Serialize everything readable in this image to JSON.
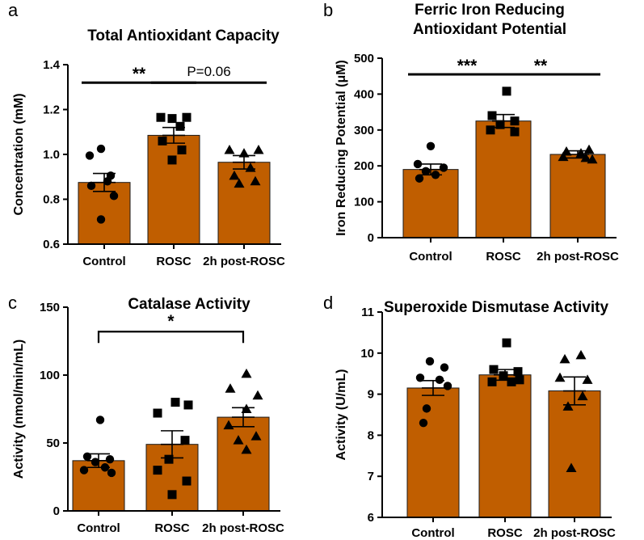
{
  "style": {
    "bar_color": "#c05e00",
    "bar_edge": "#1a1a1a",
    "point_color": "#000000"
  },
  "chart_data": [
    {
      "panel": "a",
      "type": "bar",
      "title": [
        "Total Antioxidant Capacity"
      ],
      "ylabel": "Concentration (mM)",
      "ylim": [
        0.6,
        1.4
      ],
      "yticks": [
        0.6,
        0.8,
        1.0,
        1.2,
        1.4
      ],
      "ytick_labels": [
        "0.6",
        "0.8",
        "1.0",
        "1.2",
        "1.4"
      ],
      "categories": [
        "Control",
        "ROSC",
        "2h post-ROSC"
      ],
      "values": [
        0.875,
        1.085,
        0.965
      ],
      "errors": [
        0.04,
        0.035,
        0.03
      ],
      "points": [
        {
          "shape": "circle",
          "values": [
            1.025,
            0.995,
            0.905,
            0.88,
            0.86,
            0.815,
            0.71
          ],
          "offsets": [
            -4,
            -18,
            8,
            4,
            -16,
            12,
            -4
          ]
        },
        {
          "shape": "square",
          "values": [
            1.165,
            1.165,
            1.16,
            1.125,
            1.06,
            1.02,
            0.975
          ],
          "offsets": [
            -16,
            16,
            -2,
            8,
            -14,
            10,
            -2
          ]
        },
        {
          "shape": "triangle",
          "values": [
            1.02,
            1.02,
            1.005,
            0.94,
            0.905,
            0.88,
            0.87
          ],
          "offsets": [
            -18,
            18,
            0,
            8,
            -12,
            14,
            -6
          ]
        }
      ],
      "significance": [
        {
          "from": 0,
          "to": 1,
          "label": "**",
          "y": 1.32
        },
        {
          "from": 1,
          "to": 2,
          "label": "P=0.06",
          "y": 1.32
        }
      ]
    },
    {
      "panel": "b",
      "type": "bar",
      "title": [
        "Ferric Iron Reducing",
        "Antioxidant Potential"
      ],
      "ylabel": "Iron Reducing Potential (μM)",
      "ylim": [
        0,
        500
      ],
      "yticks": [
        0,
        100,
        200,
        300,
        400,
        500
      ],
      "ytick_labels": [
        "0",
        "100",
        "200",
        "300",
        "400",
        "500"
      ],
      "categories": [
        "Control",
        "ROSC",
        "2h post-ROSC"
      ],
      "values": [
        190,
        325,
        232
      ],
      "errors": [
        15,
        18,
        10
      ],
      "points": [
        {
          "shape": "circle",
          "values": [
            255,
            205,
            195,
            185,
            175,
            165
          ],
          "offsets": [
            0,
            -16,
            16,
            -6,
            6,
            -14
          ]
        },
        {
          "shape": "square",
          "values": [
            408,
            340,
            325,
            315,
            300,
            295
          ],
          "offsets": [
            4,
            -14,
            14,
            -4,
            -16,
            14
          ]
        },
        {
          "shape": "triangle",
          "values": [
            245,
            240,
            235,
            225,
            222,
            218
          ],
          "offsets": [
            14,
            -14,
            4,
            -18,
            10,
            18
          ]
        }
      ],
      "significance": [
        {
          "from": 0,
          "to": 1,
          "label": "***",
          "y": 455
        },
        {
          "from": 1,
          "to": 2,
          "label": "**",
          "y": 455
        }
      ]
    },
    {
      "panel": "c",
      "type": "bar",
      "title": [
        "Catalase Activity"
      ],
      "ylabel": "Activity (nmol/min/mL)",
      "ylim": [
        0,
        150
      ],
      "yticks": [
        0,
        50,
        100,
        150
      ],
      "ytick_labels": [
        "0",
        "50",
        "100",
        "150"
      ],
      "categories": [
        "Control",
        "ROSC",
        "2h post-ROSC"
      ],
      "values": [
        37,
        49,
        69
      ],
      "errors": [
        5,
        10,
        7
      ],
      "points": [
        {
          "shape": "circle",
          "values": [
            67,
            40,
            38,
            36,
            32,
            30,
            28
          ],
          "offsets": [
            2,
            -14,
            14,
            -4,
            8,
            -18,
            16
          ]
        },
        {
          "shape": "square",
          "values": [
            80,
            78,
            72,
            52,
            38,
            30,
            22,
            12
          ],
          "offsets": [
            4,
            20,
            -18,
            16,
            -4,
            -18,
            18,
            0
          ]
        },
        {
          "shape": "triangle",
          "values": [
            101,
            90,
            85,
            75,
            63,
            55,
            52,
            45
          ],
          "offsets": [
            4,
            -16,
            18,
            4,
            -18,
            16,
            -6,
            4
          ]
        }
      ],
      "significance": [
        {
          "from": 0,
          "to": 2,
          "label": "*",
          "y": 132,
          "bracket": true
        }
      ]
    },
    {
      "panel": "d",
      "type": "bar",
      "title": [
        "Superoxide Dismutase Activity"
      ],
      "ylabel": "Activity (U/mL)",
      "ylim": [
        6,
        11
      ],
      "yticks": [
        6,
        7,
        8,
        9,
        10,
        11
      ],
      "ytick_labels": [
        "6",
        "7",
        "8",
        "9",
        "10",
        "11"
      ],
      "categories": [
        "Control",
        "ROSC",
        "2h post-ROSC"
      ],
      "values": [
        9.15,
        9.47,
        9.08
      ],
      "errors": [
        0.18,
        0.13,
        0.34
      ],
      "points": [
        {
          "shape": "circle",
          "values": [
            9.8,
            9.65,
            9.4,
            9.35,
            9.2,
            8.65,
            8.3
          ],
          "offsets": [
            -4,
            14,
            -16,
            8,
            18,
            -8,
            -12
          ]
        },
        {
          "shape": "square",
          "values": [
            10.25,
            9.6,
            9.55,
            9.45,
            9.35,
            9.3,
            9.3
          ],
          "offsets": [
            2,
            -14,
            16,
            -2,
            18,
            -16,
            8
          ]
        },
        {
          "shape": "triangle",
          "values": [
            9.95,
            9.85,
            9.4,
            9.35,
            8.95,
            8.7,
            7.2
          ],
          "offsets": [
            8,
            -12,
            -18,
            16,
            10,
            -8,
            -4
          ]
        }
      ],
      "significance": []
    }
  ]
}
